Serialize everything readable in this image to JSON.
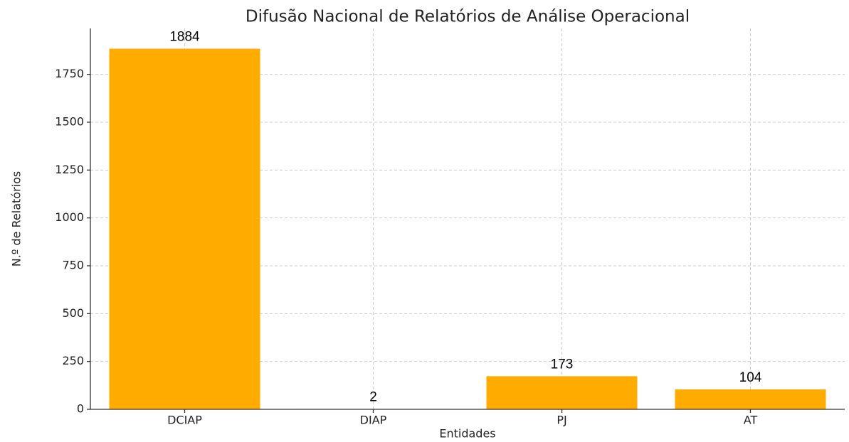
{
  "chart_data": {
    "type": "bar",
    "title": "Difusão Nacional de Relatórios de Análise Operacional",
    "x_label": "Entidades",
    "y_label": "N.º de Relatórios",
    "categories": [
      "DCIAP",
      "DIAP",
      "PJ",
      "AT"
    ],
    "values": [
      1884,
      2,
      173,
      104
    ],
    "color": "#ffab00",
    "ylim": [
      0,
      1990
    ],
    "yticks": [
      0,
      250,
      500,
      750,
      1000,
      1250,
      1500,
      1750
    ],
    "grid": true
  }
}
